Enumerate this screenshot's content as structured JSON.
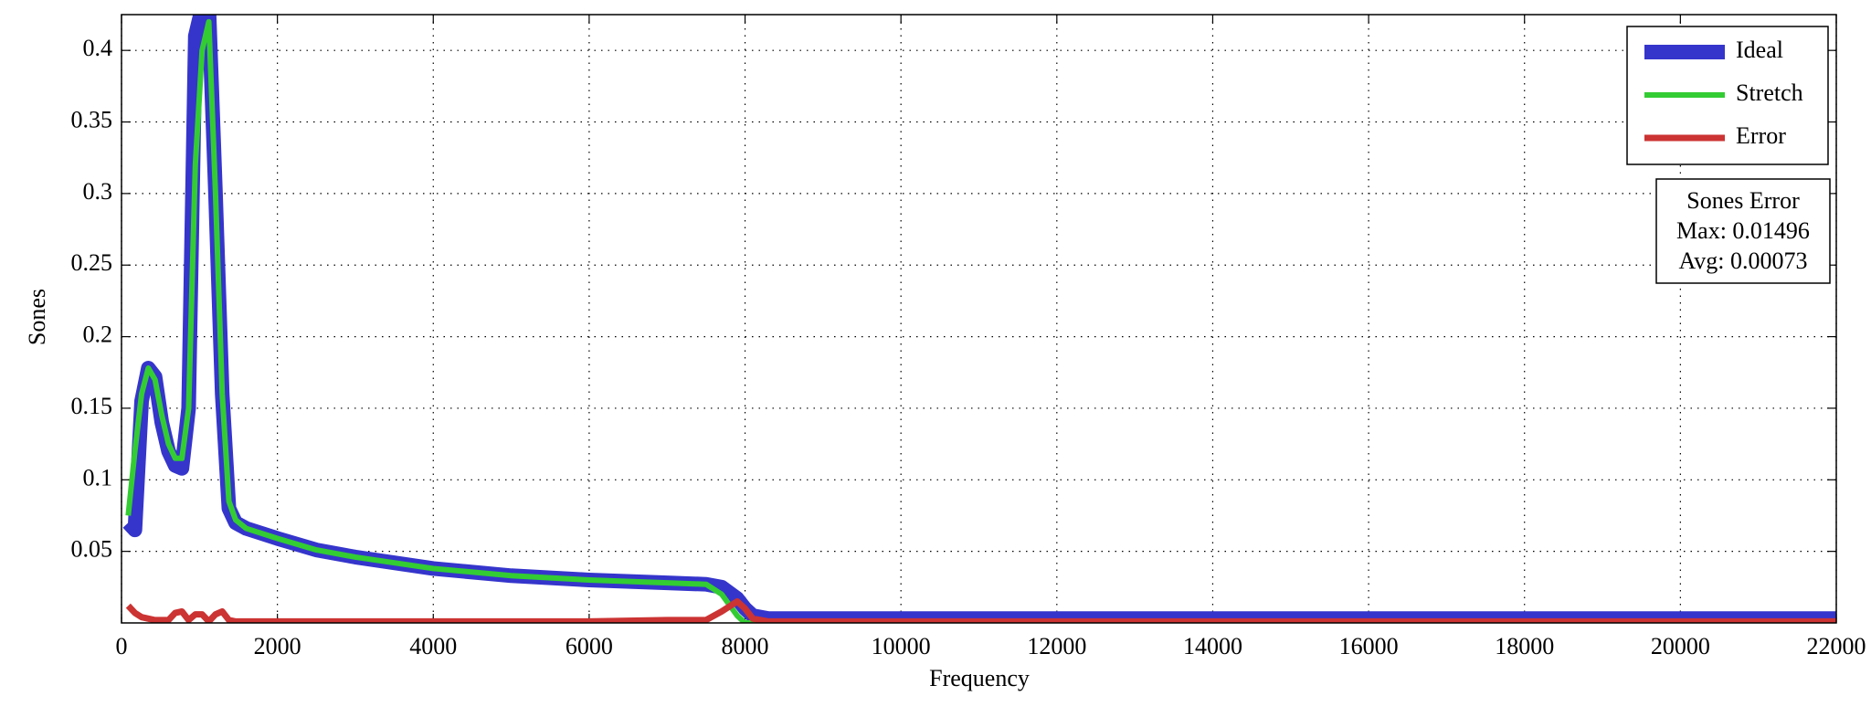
{
  "chart_data": {
    "type": "line",
    "xlabel": "Frequency",
    "ylabel": "Sones",
    "x": [
      86,
      172,
      258,
      344,
      430,
      517,
      603,
      689,
      775,
      861,
      947,
      1034,
      1120,
      1206,
      1292,
      1378,
      1464,
      1600,
      2000,
      2500,
      3000,
      4000,
      5000,
      6000,
      7000,
      7500,
      7700,
      7900,
      8000,
      8100,
      8300,
      22000
    ],
    "series": [
      {
        "name": "Ideal",
        "color": "#3535cc",
        "values": [
          0.07,
          0.065,
          0.155,
          0.178,
          0.172,
          0.14,
          0.12,
          0.11,
          0.108,
          0.15,
          0.41,
          0.43,
          0.43,
          0.3,
          0.16,
          0.08,
          0.07,
          0.066,
          0.059,
          0.051,
          0.046,
          0.038,
          0.033,
          0.03,
          0.028,
          0.027,
          0.025,
          0.017,
          0.01,
          0.005,
          0.003,
          0.003
        ]
      },
      {
        "name": "Stretch",
        "color": "#33cc33",
        "values": [
          0.075,
          0.12,
          0.16,
          0.178,
          0.17,
          0.145,
          0.125,
          0.115,
          0.115,
          0.15,
          0.32,
          0.4,
          0.42,
          0.3,
          0.16,
          0.085,
          0.072,
          0.066,
          0.059,
          0.051,
          0.046,
          0.038,
          0.033,
          0.03,
          0.028,
          0.027,
          0.02,
          0.005,
          0,
          0,
          0,
          0
        ]
      },
      {
        "name": "Error",
        "color": "#cc3333",
        "values": [
          0.012,
          0.007,
          0.004,
          0.003,
          0.002,
          0.002,
          0.002,
          0.007,
          0.008,
          0.002,
          0.006,
          0.006,
          0.001,
          0.006,
          0.008,
          0.002,
          0.001,
          0.001,
          0.001,
          0.001,
          0.001,
          0.001,
          0.001,
          0.001,
          0.002,
          0.002,
          0.008,
          0.015,
          0.01,
          0.003,
          0.001,
          0.001
        ]
      }
    ],
    "xlim": [
      0,
      22000
    ],
    "xticks": [
      0,
      2000,
      4000,
      6000,
      8000,
      10000,
      12000,
      14000,
      16000,
      18000,
      20000,
      22000
    ],
    "ylim": [
      0,
      0.425
    ],
    "yticks": [
      0.05,
      0.1,
      0.15,
      0.2,
      0.25,
      0.3,
      0.35,
      0.4
    ],
    "grid": true,
    "legend": "upper right",
    "annotation": [
      "Sones Error",
      "Max: 0.01496",
      "Avg: 0.00073"
    ]
  }
}
